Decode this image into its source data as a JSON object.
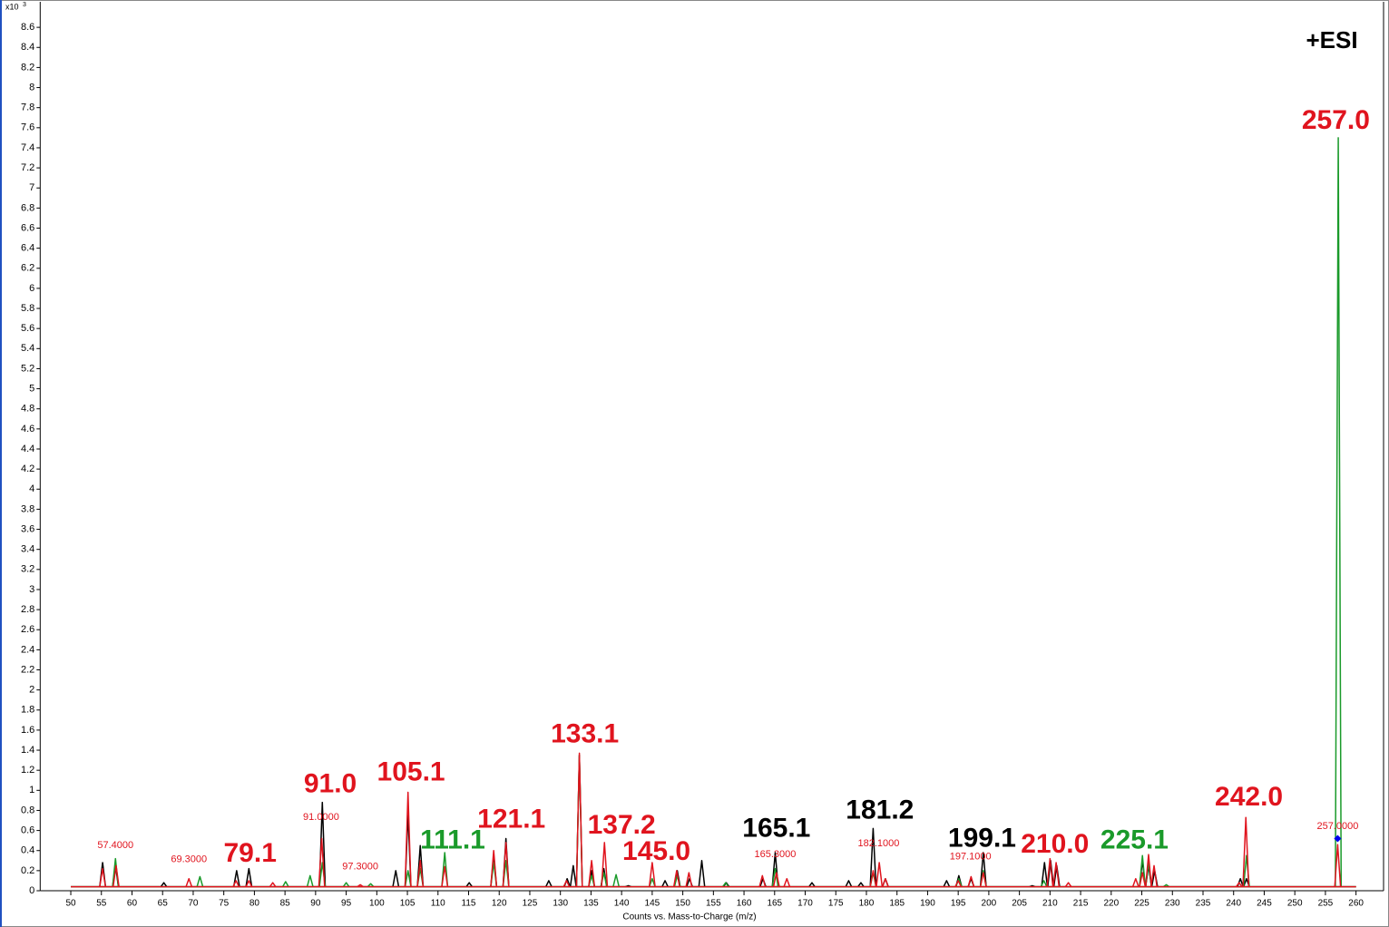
{
  "chart_data": {
    "type": "spectrum",
    "mode_label": "+ESI",
    "x_label": "Counts vs. Mass-to-Charge (m/z)",
    "y_multiplier": "x10",
    "y_exponent": "3",
    "xlim": [
      45,
      264.5
    ],
    "ylim": [
      0,
      8.8
    ],
    "xticks": [
      50,
      55,
      60,
      65,
      70,
      75,
      80,
      85,
      90,
      95,
      100,
      105,
      110,
      115,
      120,
      125,
      130,
      135,
      140,
      145,
      150,
      155,
      160,
      165,
      170,
      175,
      180,
      185,
      190,
      195,
      200,
      205,
      210,
      215,
      220,
      225,
      230,
      235,
      240,
      245,
      250,
      255,
      260
    ],
    "yticks": [
      0,
      0.2,
      0.4,
      0.6,
      0.8,
      1,
      1.2,
      1.4,
      1.6,
      1.8,
      2,
      2.2,
      2.4,
      2.6,
      2.8,
      3,
      3.2,
      3.4,
      3.6,
      3.8,
      4,
      4.2,
      4.4,
      4.6,
      4.8,
      5,
      5.2,
      5.4,
      5.6,
      5.8,
      6,
      6.2,
      6.4,
      6.6,
      6.8,
      7,
      7.2,
      7.4,
      7.6,
      7.8,
      8,
      8.2,
      8.4,
      8.6
    ],
    "baseline": 0.04,
    "series": [
      {
        "color": "#000000",
        "x": [
          55.2,
          57.3,
          65.2,
          77.1,
          79.1,
          91.1,
          103.1,
          105.1,
          107.1,
          115.1,
          119.1,
          121.1,
          128.1,
          131.1,
          132.1,
          133.1,
          135.1,
          137.1,
          141.1,
          147.1,
          149.1,
          151.1,
          153.1,
          157.1,
          163.1,
          165.1,
          171.1,
          177.1,
          179.1,
          181.1,
          183.1,
          193.1,
          195.1,
          197.1,
          199.1,
          207.1,
          209.1,
          210.1,
          211.1,
          225.1,
          226.1,
          227.1,
          241.1,
          242.1
        ],
        "values": [
          0.28,
          0.26,
          0.08,
          0.2,
          0.22,
          0.88,
          0.2,
          0.78,
          0.45,
          0.08,
          0.35,
          0.52,
          0.1,
          0.12,
          0.25,
          1.35,
          0.2,
          0.22,
          0.05,
          0.1,
          0.2,
          0.12,
          0.3,
          0.08,
          0.12,
          0.38,
          0.08,
          0.1,
          0.08,
          0.62,
          0.12,
          0.1,
          0.15,
          0.12,
          0.38,
          0.05,
          0.28,
          0.3,
          0.25,
          0.3,
          0.25,
          0.2,
          0.12,
          0.12
        ]
      },
      {
        "color": "#1a9a2a",
        "x": [
          57.3,
          71.1,
          85.1,
          89.1,
          91.1,
          95.0,
          99.0,
          105.1,
          107.1,
          111.1,
          119.1,
          121.1,
          133.1,
          135.1,
          137.1,
          139.1,
          145.0,
          149.1,
          157.0,
          165.1,
          181.1,
          195.1,
          199.1,
          209.0,
          225.1,
          226.1,
          229.0,
          242.1,
          257.1
        ],
        "values": [
          0.32,
          0.14,
          0.09,
          0.15,
          0.28,
          0.08,
          0.07,
          0.2,
          0.22,
          0.38,
          0.28,
          0.3,
          1.35,
          0.15,
          0.18,
          0.16,
          0.12,
          0.15,
          0.08,
          0.22,
          0.18,
          0.12,
          0.2,
          0.1,
          0.35,
          0.28,
          0.06,
          0.35,
          7.5
        ]
      },
      {
        "color": "#e0141e",
        "x": [
          55.2,
          57.4,
          69.3,
          77.0,
          79.1,
          83.0,
          91.0,
          97.3,
          105.1,
          107.1,
          111.1,
          119.1,
          121.1,
          131.0,
          133.1,
          135.1,
          137.2,
          145.0,
          149.0,
          151.0,
          163.0,
          165.3,
          167.0,
          181.1,
          182.1,
          183.1,
          195.0,
          197.1,
          199.1,
          210.0,
          211.0,
          213.0,
          224.0,
          225.1,
          226.1,
          227.0,
          240.9,
          242.0,
          257.0
        ],
        "values": [
          0.22,
          0.25,
          0.12,
          0.1,
          0.1,
          0.08,
          0.52,
          0.06,
          0.98,
          0.3,
          0.24,
          0.4,
          0.48,
          0.1,
          1.37,
          0.3,
          0.48,
          0.28,
          0.2,
          0.18,
          0.15,
          0.18,
          0.12,
          0.2,
          0.28,
          0.12,
          0.1,
          0.14,
          0.18,
          0.32,
          0.28,
          0.08,
          0.12,
          0.18,
          0.36,
          0.25,
          0.08,
          0.73,
          0.46
        ]
      }
    ],
    "marked_point": {
      "x": 257.0,
      "y": 0.52,
      "color": "#0000ee"
    },
    "annotations": [
      {
        "text": "257.0",
        "x": 256.7,
        "y": 7.66,
        "color": "#e0141e",
        "size": "large"
      },
      {
        "text": "242.0",
        "x": 242.5,
        "y": 0.92,
        "color": "#e0141e",
        "size": "large"
      },
      {
        "text": "225.1",
        "x": 223.8,
        "y": 0.49,
        "color": "#1a9a2a",
        "size": "large"
      },
      {
        "text": "210.0",
        "x": 210.8,
        "y": 0.45,
        "color": "#e0141e",
        "size": "large"
      },
      {
        "text": "199.1",
        "x": 198.9,
        "y": 0.51,
        "color": "#000000",
        "size": "large"
      },
      {
        "text": "181.2",
        "x": 182.2,
        "y": 0.79,
        "color": "#000000",
        "size": "large"
      },
      {
        "text": "165.1",
        "x": 165.3,
        "y": 0.61,
        "color": "#000000",
        "size": "large"
      },
      {
        "text": "145.0",
        "x": 145.7,
        "y": 0.38,
        "color": "#e0141e",
        "size": "large"
      },
      {
        "text": "137.2",
        "x": 140.0,
        "y": 0.64,
        "color": "#e0141e",
        "size": "large"
      },
      {
        "text": "133.1",
        "x": 134.0,
        "y": 1.55,
        "color": "#e0141e",
        "size": "large"
      },
      {
        "text": "121.1",
        "x": 122.0,
        "y": 0.7,
        "color": "#e0141e",
        "size": "large"
      },
      {
        "text": "111.1",
        "x": 112.4,
        "y": 0.49,
        "color": "#1a9a2a",
        "size": "large"
      },
      {
        "text": "105.1",
        "x": 105.6,
        "y": 1.17,
        "color": "#e0141e",
        "size": "large"
      },
      {
        "text": "91.0",
        "x": 92.4,
        "y": 1.05,
        "color": "#e0141e",
        "size": "large"
      },
      {
        "text": "79.1",
        "x": 79.3,
        "y": 0.36,
        "color": "#e0141e",
        "size": "large"
      },
      {
        "text": "57.4000",
        "x": 57.3,
        "y": 0.45,
        "color": "#e0141e",
        "size": "small"
      },
      {
        "text": "69.3000",
        "x": 69.3,
        "y": 0.31,
        "color": "#e0141e",
        "size": "small"
      },
      {
        "text": "91.0000",
        "x": 90.9,
        "y": 0.73,
        "color": "#e0141e",
        "size": "small"
      },
      {
        "text": "97.3000",
        "x": 97.3,
        "y": 0.24,
        "color": "#e0141e",
        "size": "small"
      },
      {
        "text": "165.3000",
        "x": 165.1,
        "y": 0.36,
        "color": "#e0141e",
        "size": "small"
      },
      {
        "text": "182.1000",
        "x": 182.0,
        "y": 0.47,
        "color": "#e0141e",
        "size": "small"
      },
      {
        "text": "197.1000",
        "x": 197.0,
        "y": 0.34,
        "color": "#e0141e",
        "size": "small"
      },
      {
        "text": "257.0000",
        "x": 257.0,
        "y": 0.64,
        "color": "#e0141e",
        "size": "small"
      }
    ]
  }
}
